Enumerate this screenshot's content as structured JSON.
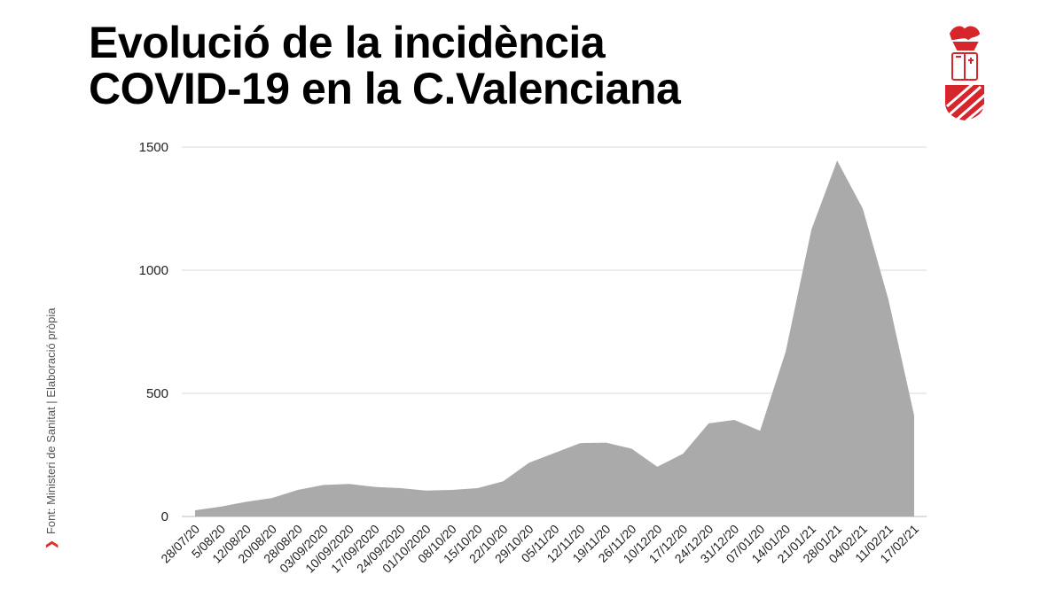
{
  "title_lines": [
    "Evolució de la incidència",
    "COVID-19 en la C.Valenciana"
  ],
  "source": "Font: Ministeri de Sanitat | Elaboració pròpia",
  "colors": {
    "area": "#aaaaaa",
    "grid": "#d9d9d9",
    "accent": "#e0342b",
    "logo": "#d6262c"
  },
  "chart_data": {
    "type": "area",
    "title": "Evolució de la incidència COVID-19 en la C.Valenciana",
    "xlabel": "",
    "ylabel": "",
    "ylim": [
      0,
      1500
    ],
    "yticks": [
      0,
      500,
      1000,
      1500
    ],
    "grid": true,
    "x": [
      "28/07/20",
      "5/08/20",
      "12/08/20",
      "20/08/20",
      "28/08/20",
      "03/09/2020",
      "10/09/2020",
      "17/09/2020",
      "24/09/2020",
      "01/10/2020",
      "08/10/20",
      "15/10/20",
      "22/10/20",
      "29/10/20",
      "05/11/20",
      "12/11/20",
      "19/11/20",
      "26/11/20",
      "10/12/20",
      "17/12/20",
      "24/12/20",
      "31/12/20",
      "07/01/20",
      "14/01/20",
      "21/01/21",
      "28/01/21",
      "04/02/21",
      "11/02/21",
      "17/02/21"
    ],
    "values": [
      25,
      40,
      60,
      75,
      108,
      128,
      132,
      120,
      115,
      105,
      108,
      115,
      143,
      218,
      258,
      298,
      300,
      275,
      202,
      255,
      378,
      392,
      348,
      670,
      1165,
      1445,
      1250,
      880,
      410
    ]
  }
}
